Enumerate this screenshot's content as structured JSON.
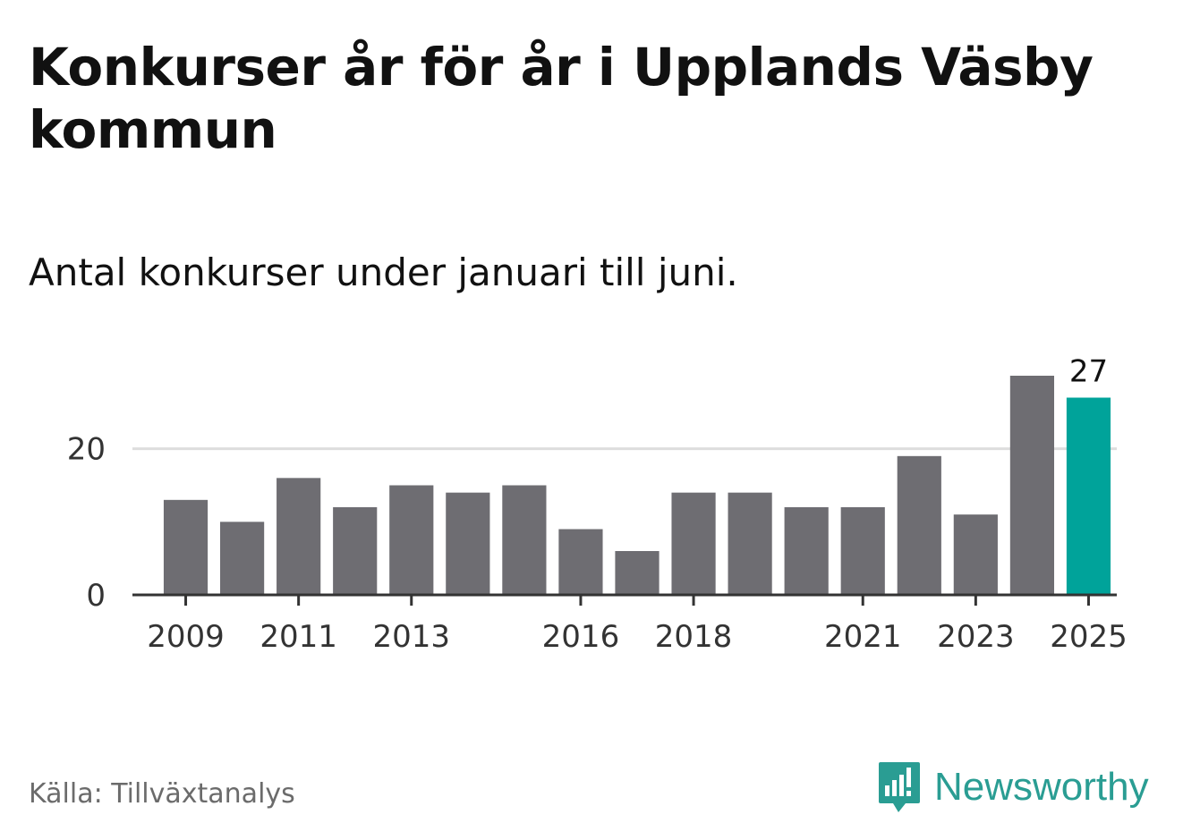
{
  "header": {
    "title": "Konkurser år för år i Upplands Väsby kommun",
    "subtitle": "Antal konkurser under januari till juni."
  },
  "footer": {
    "source": "Källa: Tillväxtanalys",
    "brand": "Newsworthy",
    "brand_icon": "bar-chart-speech-bubble-icon"
  },
  "colors": {
    "bar": "#6e6d72",
    "highlight": "#00a39a",
    "grid": "#dddddd",
    "axis": "#333333",
    "brand": "#2a9d93"
  },
  "chart_data": {
    "type": "bar",
    "categories": [
      "2009",
      "2010",
      "2011",
      "2012",
      "2013",
      "2014",
      "2015",
      "2016",
      "2017",
      "2018",
      "2019",
      "2020",
      "2021",
      "2022",
      "2023",
      "2024",
      "2025"
    ],
    "values": [
      13,
      10,
      16,
      12,
      15,
      14,
      15,
      9,
      6,
      14,
      14,
      12,
      12,
      19,
      11,
      30,
      27
    ],
    "x_tick_labels": [
      "2009",
      "2011",
      "2013",
      "2016",
      "2018",
      "2021",
      "2023",
      "2025"
    ],
    "y_ticks": [
      0,
      20
    ],
    "ylim": [
      0,
      30
    ],
    "highlight_category": "2025",
    "data_labels": [
      {
        "category": "2025",
        "text": "27"
      }
    ],
    "title": "",
    "xlabel": "",
    "ylabel": "",
    "grid": true
  }
}
